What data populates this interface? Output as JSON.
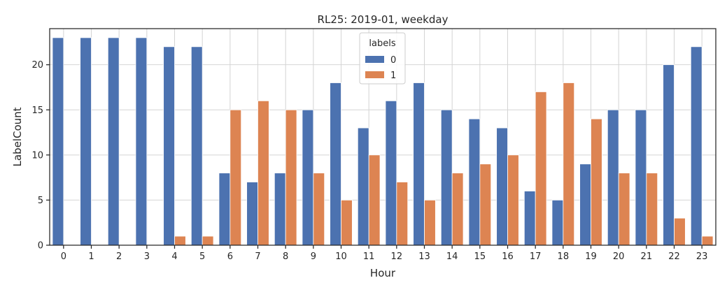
{
  "chart_data": {
    "type": "bar",
    "title": "RL25: 2019-01, weekday",
    "xlabel": "Hour",
    "ylabel": "LabelCount",
    "categories": [
      "0",
      "1",
      "2",
      "3",
      "4",
      "5",
      "6",
      "7",
      "8",
      "9",
      "10",
      "11",
      "12",
      "13",
      "14",
      "15",
      "16",
      "17",
      "18",
      "19",
      "20",
      "21",
      "22",
      "23"
    ],
    "ylim": [
      0,
      24
    ],
    "yticks": [
      "0",
      "5",
      "10",
      "15",
      "20"
    ],
    "grid": true,
    "legend": {
      "title": "labels",
      "position": "top-center",
      "entries": [
        "0",
        "1"
      ]
    },
    "series": [
      {
        "name": "0",
        "color": "#4c72b0",
        "values": [
          23,
          23,
          23,
          23,
          22,
          22,
          8,
          7,
          8,
          15,
          18,
          13,
          16,
          18,
          15,
          14,
          13,
          6,
          5,
          9,
          15,
          15,
          20,
          22
        ]
      },
      {
        "name": "1",
        "color": "#dd8452",
        "values": [
          0,
          0,
          0,
          0,
          1,
          1,
          15,
          16,
          15,
          8,
          5,
          10,
          7,
          5,
          8,
          9,
          10,
          17,
          18,
          14,
          8,
          8,
          3,
          1
        ]
      }
    ]
  }
}
